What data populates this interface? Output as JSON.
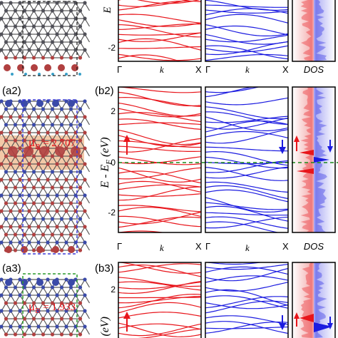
{
  "panels": {
    "a2": "(a2)",
    "b2": "(b2)",
    "a3": "(a3)",
    "b3": "(b3)"
  },
  "moments": {
    "a2": {
      "prefix": "μ",
      "sub": "B",
      "value": " = 2.707"
    },
    "a3": {
      "prefix": "μ",
      "sub": "B",
      "value": " = 1.933"
    }
  },
  "axes": {
    "e_top": "E",
    "e_mid": "E - E",
    "e_mid_sub": "F",
    "e_mid_unit": " (eV)",
    "e_bot": "E",
    "e_bot_sub": "F",
    "e_bot_unit": " (eV)",
    "k": "k",
    "gamma": "Γ",
    "x": "X",
    "dos": "DOS"
  },
  "ticks": {
    "top_m2": "-2",
    "mid_2": "2",
    "mid_0": "0",
    "mid_m2": "-2",
    "bot_2": "2"
  },
  "colors": {
    "spin_up": "#e8151b",
    "spin_down": "#1c1ce0",
    "fermi": "#1a8a1a",
    "c_atom": "#505058",
    "b_atom": "#b04040",
    "n_atom": "#3a4aa8",
    "spin_density": "#f3c9a8",
    "box_blue": "#3b3bd8",
    "box_green": "#2a9a2a"
  }
}
